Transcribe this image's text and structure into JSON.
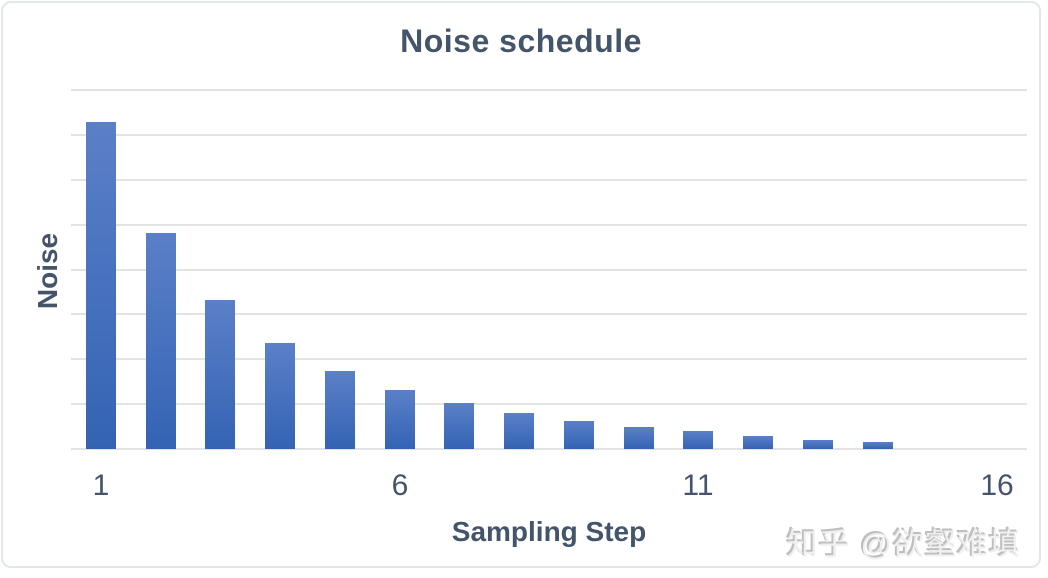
{
  "chart": {
    "title": "Noise schedule",
    "x_axis_label": "Sampling Step",
    "y_axis_label": "Noise",
    "x_tick_labels": [
      "1",
      "6",
      "11",
      "16"
    ],
    "text_color": "#44546a",
    "gridline_color": "#e3e3e3",
    "bar_gradient_top": "#5b80c8",
    "bar_gradient_bottom": "#3463b4",
    "background_color": "#ffffff",
    "card_border_color": "#e2e7e8"
  },
  "watermark": {
    "text": "知乎 @欲壑难填",
    "color": "#c9c9c9"
  },
  "chart_data": {
    "type": "bar",
    "title": "Noise schedule",
    "xlabel": "Sampling Step",
    "ylabel": "Noise",
    "x": [
      1,
      2,
      3,
      4,
      5,
      6,
      7,
      8,
      9,
      10,
      11,
      12,
      13,
      14
    ],
    "values": [
      7.28,
      4.81,
      3.33,
      2.37,
      1.74,
      1.31,
      1.02,
      0.81,
      0.62,
      0.49,
      0.39,
      0.28,
      0.21,
      0.15
    ],
    "x_ticks": [
      1,
      6,
      11,
      16
    ],
    "x_tick_labels": [
      "1",
      "6",
      "11",
      "16"
    ],
    "xlim": [
      0.5,
      16.5
    ],
    "ylim": [
      0,
      8
    ],
    "y_gridline_step": 1,
    "grid": "horizontal",
    "y_tick_labels_shown": false,
    "legend": "none",
    "bar_color_gradient": [
      "#5b80c8",
      "#3463b4"
    ]
  }
}
